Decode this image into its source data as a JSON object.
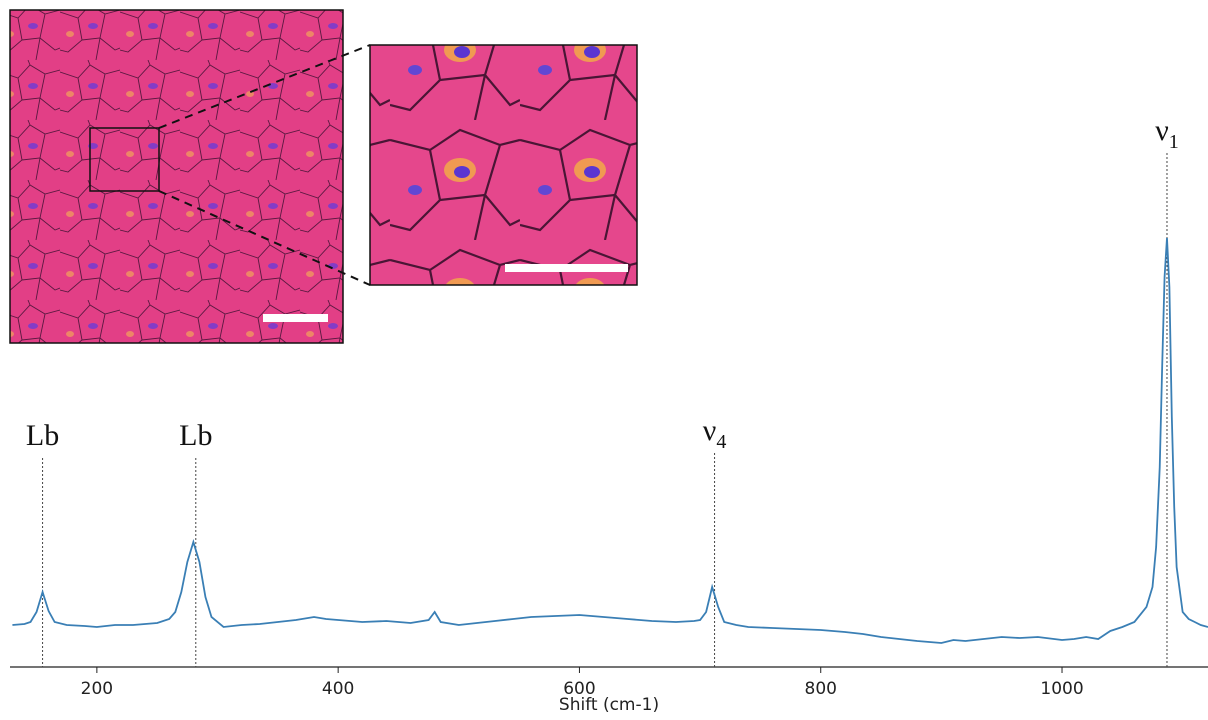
{
  "chart_data": {
    "type": "line",
    "xlabel": "Shift (cm-1)",
    "xlim": [
      128,
      1121
    ],
    "ylim": [
      0,
      450
    ],
    "xticks": [
      200,
      400,
      600,
      800,
      1000
    ],
    "series": [
      {
        "color": "#3a7fb5",
        "x": [
          130,
          140,
          145,
          150,
          155,
          160,
          165,
          175,
          190,
          200,
          215,
          230,
          250,
          260,
          265,
          270,
          275,
          280,
          285,
          290,
          295,
          305,
          320,
          335,
          350,
          365,
          380,
          390,
          400,
          420,
          440,
          460,
          475,
          480,
          485,
          500,
          515,
          530,
          545,
          560,
          580,
          600,
          620,
          640,
          660,
          680,
          695,
          700,
          705,
          710,
          715,
          720,
          730,
          740,
          760,
          780,
          800,
          820,
          835,
          850,
          865,
          880,
          890,
          900,
          910,
          920,
          935,
          950,
          965,
          980,
          1000,
          1010,
          1020,
          1030,
          1040,
          1050,
          1060,
          1070,
          1075,
          1078,
          1081,
          1083,
          1085,
          1087,
          1089,
          1091,
          1093,
          1095,
          1100,
          1105,
          1110,
          1115,
          1121
        ],
        "values": [
          42,
          43,
          45,
          55,
          75,
          56,
          45,
          42,
          41,
          40,
          42,
          42,
          44,
          48,
          55,
          75,
          105,
          125,
          105,
          70,
          50,
          40,
          42,
          43,
          45,
          47,
          50,
          48,
          47,
          45,
          46,
          44,
          47,
          55,
          45,
          42,
          44,
          46,
          48,
          50,
          51,
          52,
          50,
          48,
          46,
          45,
          46,
          47,
          55,
          80,
          60,
          45,
          42,
          40,
          39,
          38,
          37,
          35,
          33,
          30,
          28,
          26,
          25,
          24,
          27,
          26,
          28,
          30,
          29,
          30,
          27,
          28,
          30,
          28,
          36,
          40,
          45,
          60,
          80,
          120,
          200,
          300,
          390,
          429,
          380,
          250,
          160,
          100,
          55,
          48,
          45,
          42,
          40
        ]
      }
    ],
    "annotations": [
      {
        "text": "Lb",
        "x": 155
      },
      {
        "text": "Lb",
        "x": 282
      },
      {
        "text": "ν",
        "sub": "4",
        "x": 712
      },
      {
        "text": "ν",
        "sub": "1",
        "x": 1087
      }
    ]
  }
}
